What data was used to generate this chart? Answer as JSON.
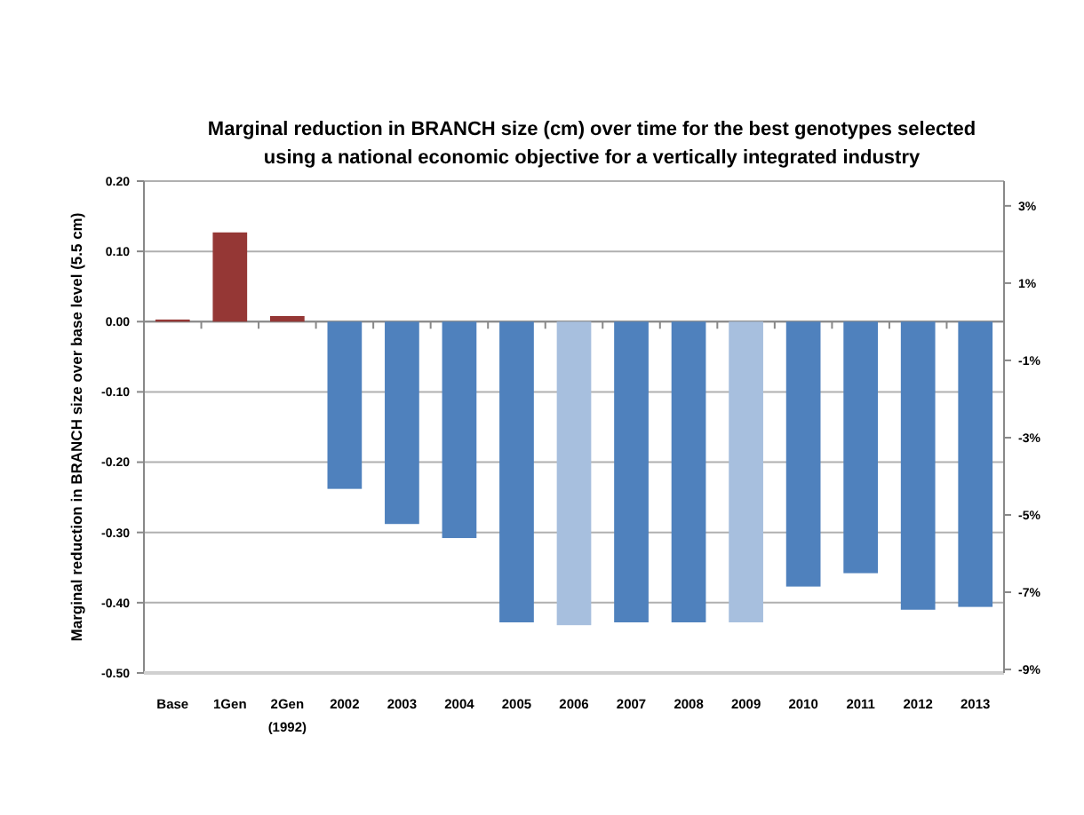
{
  "chart_data": {
    "type": "bar",
    "title": "Marginal reduction in BRANCH size (cm) over time for the best genotypes selected\nusing a national economic objective for a vertically integrated industry",
    "ylabel": "Marginal reduction in BRANCH size over base level (5.5 cm)",
    "categories": [
      "Base",
      "1Gen",
      "2Gen\n(1992)",
      "2002",
      "2003",
      "2004",
      "2005",
      "2006",
      "2007",
      "2008",
      "2009",
      "2010",
      "2011",
      "2012",
      "2013"
    ],
    "values": [
      0.003,
      0.127,
      0.008,
      -0.238,
      -0.288,
      -0.308,
      -0.428,
      -0.432,
      -0.428,
      -0.428,
      -0.428,
      -0.377,
      -0.358,
      -0.41,
      -0.406
    ],
    "colors": [
      "#953735",
      "#953735",
      "#953735",
      "#4f81bd",
      "#4f81bd",
      "#4f81bd",
      "#4f81bd",
      "#a7bfde",
      "#4f81bd",
      "#4f81bd",
      "#a7bfde",
      "#4f81bd",
      "#4f81bd",
      "#4f81bd",
      "#4f81bd"
    ],
    "ylim": [
      -0.5,
      0.2
    ],
    "yticks": [
      {
        "value": -0.5,
        "label": "-0.50"
      },
      {
        "value": -0.4,
        "label": "-0.40"
      },
      {
        "value": -0.3,
        "label": "-0.30"
      },
      {
        "value": -0.2,
        "label": "-0.20"
      },
      {
        "value": -0.1,
        "label": "-0.10"
      },
      {
        "value": 0,
        "label": "0.00"
      },
      {
        "value": 0.1,
        "label": "0.10"
      },
      {
        "value": 0.2,
        "label": "0.20"
      }
    ],
    "y2lim": [
      -9.09,
      3.64
    ],
    "y2ticks": [
      {
        "value": -9,
        "label": "-9%"
      },
      {
        "value": -7,
        "label": "-7%"
      },
      {
        "value": -5,
        "label": "-5%"
      },
      {
        "value": -3,
        "label": "-3%"
      },
      {
        "value": -1,
        "label": "-1%"
      },
      {
        "value": 1,
        "label": "1%"
      },
      {
        "value": 3,
        "label": "3%"
      }
    ],
    "grid": "y"
  }
}
